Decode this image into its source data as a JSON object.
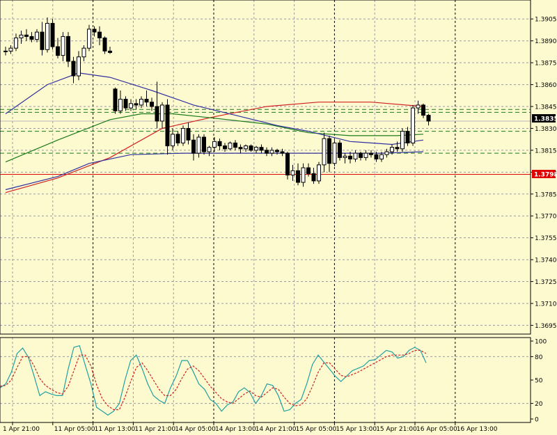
{
  "chart_data": [
    {
      "type": "candlestick",
      "title": "",
      "x_ticks": [
        "1 Apr 21:00",
        "11 Apr 05:00",
        "11 Apr 13:00",
        "11 Apr 21:00",
        "14 Apr 05:00",
        "14 Apr 13:00",
        "14 Apr 21:00",
        "15 Apr 05:00",
        "15 Apr 13:00",
        "15 Apr 21:00",
        "16 Apr 05:00",
        "16 Apr 13:00"
      ],
      "y_ticks": [
        "1.3905",
        "1.3890",
        "1.3875",
        "1.3860",
        "1.3845",
        "1.3830",
        "1.3815",
        "1.3800",
        "1.3785",
        "1.3770",
        "1.3755",
        "1.3740",
        "1.3725",
        "1.3710",
        "1.3695"
      ],
      "ylim": [
        1.3689,
        1.3918
      ],
      "current_price": "1.3835",
      "alert_price": "1.3798",
      "alert_line_value": 1.37985,
      "horizontal_levels": [
        1.3843,
        1.3841,
        1.3828,
        1.3813
      ],
      "colors": {
        "background": "#fefad0",
        "grid": "#9a9a9a",
        "candle": "#000000",
        "fast_ma": "#3030a0",
        "slow_ma": "#1a7a1a",
        "trend_ma": "#d02020",
        "level": "#1a7a1a",
        "alert": "#e00000"
      },
      "candles": [
        [
          1.3883,
          1.3886,
          1.388,
          1.3883
        ],
        [
          1.3883,
          1.3887,
          1.3881,
          1.3885
        ],
        [
          1.3885,
          1.3895,
          1.3883,
          1.3892
        ],
        [
          1.3892,
          1.3897,
          1.3888,
          1.3894
        ],
        [
          1.3894,
          1.3898,
          1.389,
          1.3893
        ],
        [
          1.3893,
          1.3896,
          1.3889,
          1.3891
        ],
        [
          1.3891,
          1.3898,
          1.3889,
          1.3896
        ],
        [
          1.3896,
          1.3903,
          1.388,
          1.3884
        ],
        [
          1.3884,
          1.3906,
          1.3882,
          1.3902
        ],
        [
          1.3902,
          1.3905,
          1.3884,
          1.3886
        ],
        [
          1.3886,
          1.3892,
          1.3878,
          1.388
        ],
        [
          1.388,
          1.3896,
          1.3876,
          1.3893
        ],
        [
          1.3893,
          1.3896,
          1.3872,
          1.3876
        ],
        [
          1.3876,
          1.3879,
          1.3861,
          1.3866
        ],
        [
          1.3866,
          1.3883,
          1.3863,
          1.3879
        ],
        [
          1.3879,
          1.3887,
          1.3876,
          1.3885
        ],
        [
          1.3885,
          1.3901,
          1.3883,
          1.3898
        ],
        [
          1.3898,
          1.39,
          1.3893,
          1.3896
        ],
        [
          1.3896,
          1.39,
          1.3887,
          1.3892
        ],
        [
          1.3892,
          1.3893,
          1.3881,
          1.3883
        ],
        [
          1.3883,
          1.3886,
          1.3881,
          1.3882
        ],
        [
          1.3857,
          1.3858,
          1.384,
          1.3842
        ],
        [
          1.3842,
          1.3856,
          1.384,
          1.385
        ],
        [
          1.385,
          1.3852,
          1.3842,
          1.3844
        ],
        [
          1.3844,
          1.385,
          1.3842,
          1.3847
        ],
        [
          1.3847,
          1.385,
          1.3843,
          1.3846
        ],
        [
          1.3846,
          1.3852,
          1.3844,
          1.385
        ],
        [
          1.385,
          1.3856,
          1.3845,
          1.3848
        ],
        [
          1.3848,
          1.3851,
          1.3842,
          1.3845
        ],
        [
          1.3845,
          1.3862,
          1.383,
          1.3835
        ],
        [
          1.3835,
          1.3848,
          1.383,
          1.3846
        ],
        [
          1.3846,
          1.385,
          1.3812,
          1.3818
        ],
        [
          1.3818,
          1.383,
          1.3815,
          1.3826
        ],
        [
          1.3826,
          1.3828,
          1.3818,
          1.382
        ],
        [
          1.382,
          1.3832,
          1.3818,
          1.383
        ],
        [
          1.383,
          1.3834,
          1.3819,
          1.3822
        ],
        [
          1.3822,
          1.3826,
          1.3808,
          1.3813
        ],
        [
          1.3813,
          1.3826,
          1.381,
          1.3824
        ],
        [
          1.3824,
          1.3826,
          1.3812,
          1.3814
        ],
        [
          1.3814,
          1.3818,
          1.3811,
          1.3817
        ],
        [
          1.3817,
          1.3824,
          1.3814,
          1.3821
        ],
        [
          1.3821,
          1.3823,
          1.3815,
          1.3818
        ],
        [
          1.3818,
          1.382,
          1.3814,
          1.3816
        ],
        [
          1.3816,
          1.3821,
          1.3815,
          1.382
        ],
        [
          1.382,
          1.3822,
          1.3815,
          1.3817
        ],
        [
          1.3817,
          1.3819,
          1.3813,
          1.3816
        ],
        [
          1.3816,
          1.3819,
          1.3814,
          1.3818
        ],
        [
          1.3818,
          1.3819,
          1.3814,
          1.3815
        ],
        [
          1.3815,
          1.3818,
          1.3813,
          1.3817
        ],
        [
          1.3817,
          1.3819,
          1.3813,
          1.3815
        ],
        [
          1.3815,
          1.3817,
          1.3811,
          1.3813
        ],
        [
          1.3813,
          1.3817,
          1.3811,
          1.3815
        ],
        [
          1.3815,
          1.3816,
          1.3812,
          1.3814
        ],
        [
          1.3814,
          1.3816,
          1.3811,
          1.3813
        ],
        [
          1.3813,
          1.3814,
          1.3795,
          1.3798
        ],
        [
          1.3798,
          1.3805,
          1.3794,
          1.3801
        ],
        [
          1.3801,
          1.3806,
          1.3791,
          1.3793
        ],
        [
          1.3793,
          1.3806,
          1.379,
          1.3803
        ],
        [
          1.3803,
          1.3806,
          1.3797,
          1.3799
        ],
        [
          1.3799,
          1.3803,
          1.3792,
          1.3794
        ],
        [
          1.3794,
          1.3807,
          1.3792,
          1.3805
        ],
        [
          1.3805,
          1.3827,
          1.38,
          1.3823
        ],
        [
          1.3823,
          1.3825,
          1.38,
          1.3806
        ],
        [
          1.3806,
          1.3822,
          1.3804,
          1.382
        ],
        [
          1.382,
          1.3822,
          1.3808,
          1.381
        ],
        [
          1.381,
          1.3813,
          1.3806,
          1.3811
        ],
        [
          1.3811,
          1.3814,
          1.3806,
          1.3809
        ],
        [
          1.3809,
          1.3815,
          1.3807,
          1.3813
        ],
        [
          1.3813,
          1.3814,
          1.3808,
          1.381
        ],
        [
          1.381,
          1.3815,
          1.3808,
          1.3813
        ],
        [
          1.3813,
          1.3815,
          1.381,
          1.3812
        ],
        [
          1.3812,
          1.3814,
          1.3807,
          1.3809
        ],
        [
          1.3809,
          1.3814,
          1.3807,
          1.3812
        ],
        [
          1.3812,
          1.3816,
          1.381,
          1.3814
        ],
        [
          1.3814,
          1.3819,
          1.3812,
          1.3817
        ],
        [
          1.3817,
          1.3821,
          1.3814,
          1.3816
        ],
        [
          1.3816,
          1.383,
          1.3814,
          1.3828
        ],
        [
          1.3828,
          1.3831,
          1.3818,
          1.382
        ],
        [
          1.382,
          1.3846,
          1.3818,
          1.3844
        ],
        [
          1.3844,
          1.3849,
          1.384,
          1.3846
        ],
        [
          1.3846,
          1.3847,
          1.3837,
          1.3839
        ],
        [
          1.3839,
          1.384,
          1.3832,
          1.3835
        ]
      ],
      "moving_averages": [
        {
          "role": "trend_ma",
          "points": [
            [
              0,
              1.3786
            ],
            [
              10,
              1.3796
            ],
            [
              20,
              1.381
            ],
            [
              30,
              1.383
            ],
            [
              40,
              1.3838
            ],
            [
              50,
              1.3845
            ],
            [
              60,
              1.3848
            ],
            [
              70,
              1.3848
            ],
            [
              80,
              1.3845
            ]
          ]
        },
        {
          "role": "slow_ma",
          "points": [
            [
              0,
              1.3807
            ],
            [
              10,
              1.3822
            ],
            [
              20,
              1.3836
            ],
            [
              26,
              1.384
            ],
            [
              32,
              1.384
            ],
            [
              40,
              1.3837
            ],
            [
              50,
              1.3833
            ],
            [
              58,
              1.3827
            ],
            [
              66,
              1.3825
            ],
            [
              75,
              1.3825
            ],
            [
              80,
              1.3826
            ]
          ]
        },
        {
          "role": "fast_ma",
          "points": [
            [
              0,
              1.384
            ],
            [
              8,
              1.386
            ],
            [
              14,
              1.3868
            ],
            [
              20,
              1.3865
            ],
            [
              28,
              1.3856
            ],
            [
              36,
              1.3846
            ],
            [
              44,
              1.3839
            ],
            [
              52,
              1.3832
            ],
            [
              58,
              1.3828
            ],
            [
              66,
              1.3821
            ],
            [
              74,
              1.3819
            ],
            [
              80,
              1.3822
            ]
          ]
        },
        {
          "role": "fast_ma",
          "points": [
            [
              0,
              1.3788
            ],
            [
              10,
              1.3797
            ],
            [
              16,
              1.3806
            ],
            [
              24,
              1.3812
            ],
            [
              34,
              1.3813
            ],
            [
              44,
              1.3813
            ],
            [
              60,
              1.3813
            ],
            [
              72,
              1.3813
            ],
            [
              80,
              1.3814
            ]
          ]
        }
      ]
    },
    {
      "type": "line",
      "y_ticks": [
        "100",
        "80",
        "50",
        "20",
        "0"
      ],
      "ylim": [
        0,
        100
      ],
      "colors": {
        "main": "#20a0a0",
        "signal": "#d02020"
      },
      "series": [
        {
          "role": "main",
          "values": [
            40,
            45,
            60,
            84,
            91,
            79,
            55,
            30,
            35,
            32,
            30,
            30,
            64,
            92,
            94,
            69,
            45,
            15,
            10,
            5,
            10,
            20,
            50,
            75,
            82,
            65,
            45,
            30,
            24,
            20,
            40,
            55,
            75,
            75,
            61,
            45,
            38,
            25,
            20,
            10,
            18,
            22,
            35,
            40,
            34,
            20,
            30,
            45,
            43,
            30,
            10,
            12,
            20,
            25,
            45,
            70,
            82,
            73,
            64,
            55,
            48,
            55,
            62,
            65,
            68,
            75,
            76,
            82,
            88,
            86,
            78,
            80,
            88,
            92,
            88,
            72
          ]
        },
        {
          "role": "signal",
          "values": [
            42,
            43,
            50,
            66,
            80,
            80,
            68,
            52,
            43,
            38,
            34,
            32,
            42,
            62,
            82,
            82,
            68,
            44,
            26,
            17,
            12,
            12,
            28,
            48,
            66,
            72,
            62,
            50,
            38,
            30,
            30,
            38,
            52,
            64,
            68,
            62,
            52,
            42,
            34,
            26,
            22,
            20,
            26,
            32,
            36,
            30,
            28,
            34,
            40,
            38,
            28,
            20,
            17,
            18,
            26,
            42,
            60,
            72,
            72,
            64,
            56,
            54,
            57,
            60,
            64,
            68,
            72,
            76,
            80,
            82,
            82,
            82,
            84,
            88,
            88,
            84
          ]
        }
      ]
    }
  ]
}
